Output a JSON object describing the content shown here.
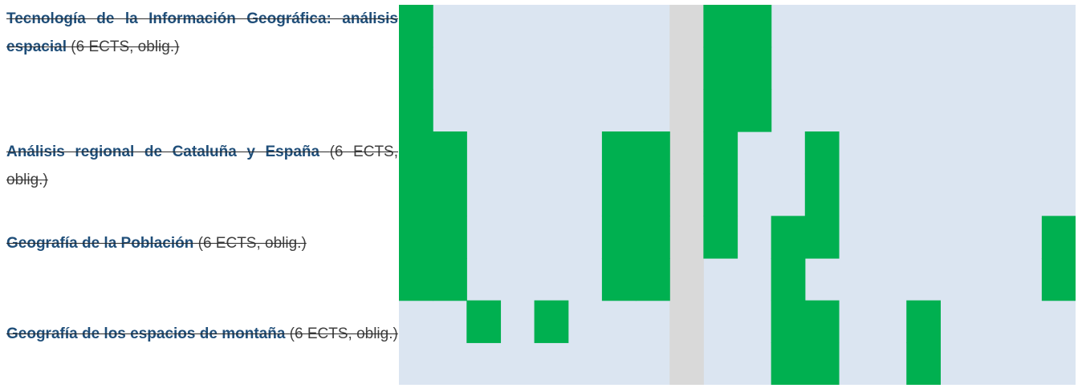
{
  "courses": [
    {
      "name": "Tecnología de la Información Geográfica: análisis espacial",
      "meta": "(6 ECTS, oblig.)"
    },
    {
      "name": "Análisis regional de Cataluña y España",
      "meta": "(6 ECTS, oblig.)"
    },
    {
      "name": "Geografía de la Población",
      "meta": "(6 ECTS, oblig.)"
    },
    {
      "name": "Geografía de los espacios de montaña",
      "meta": "(6 ECTS, oblig.)"
    }
  ],
  "schedule": {
    "columns": 20,
    "rows": 9,
    "colors": {
      "background": "#dbe5f1",
      "filled": "#00b050",
      "separator": "#d9d9d9"
    },
    "separator_column": 8,
    "filled_cells": [
      [
        0,
        0
      ],
      [
        0,
        1
      ],
      [
        0,
        2
      ],
      [
        0,
        3
      ],
      [
        0,
        4
      ],
      [
        0,
        5
      ],
      [
        0,
        6
      ],
      [
        1,
        3
      ],
      [
        1,
        4
      ],
      [
        1,
        5
      ],
      [
        1,
        6
      ],
      [
        2,
        7
      ],
      [
        4,
        7
      ],
      [
        6,
        3
      ],
      [
        6,
        4
      ],
      [
        6,
        5
      ],
      [
        6,
        6
      ],
      [
        7,
        3
      ],
      [
        7,
        4
      ],
      [
        7,
        5
      ],
      [
        7,
        6
      ],
      [
        9,
        0
      ],
      [
        9,
        1
      ],
      [
        9,
        2
      ],
      [
        9,
        3
      ],
      [
        9,
        4
      ],
      [
        9,
        5
      ],
      [
        10,
        0
      ],
      [
        10,
        1
      ],
      [
        10,
        2
      ],
      [
        11,
        5
      ],
      [
        11,
        6
      ],
      [
        11,
        7
      ],
      [
        11,
        8
      ],
      [
        12,
        7
      ],
      [
        12,
        8
      ],
      [
        12,
        3
      ],
      [
        12,
        4
      ],
      [
        12,
        5
      ],
      [
        15,
        7
      ],
      [
        15,
        8
      ],
      [
        19,
        5
      ],
      [
        19,
        6
      ]
    ]
  }
}
